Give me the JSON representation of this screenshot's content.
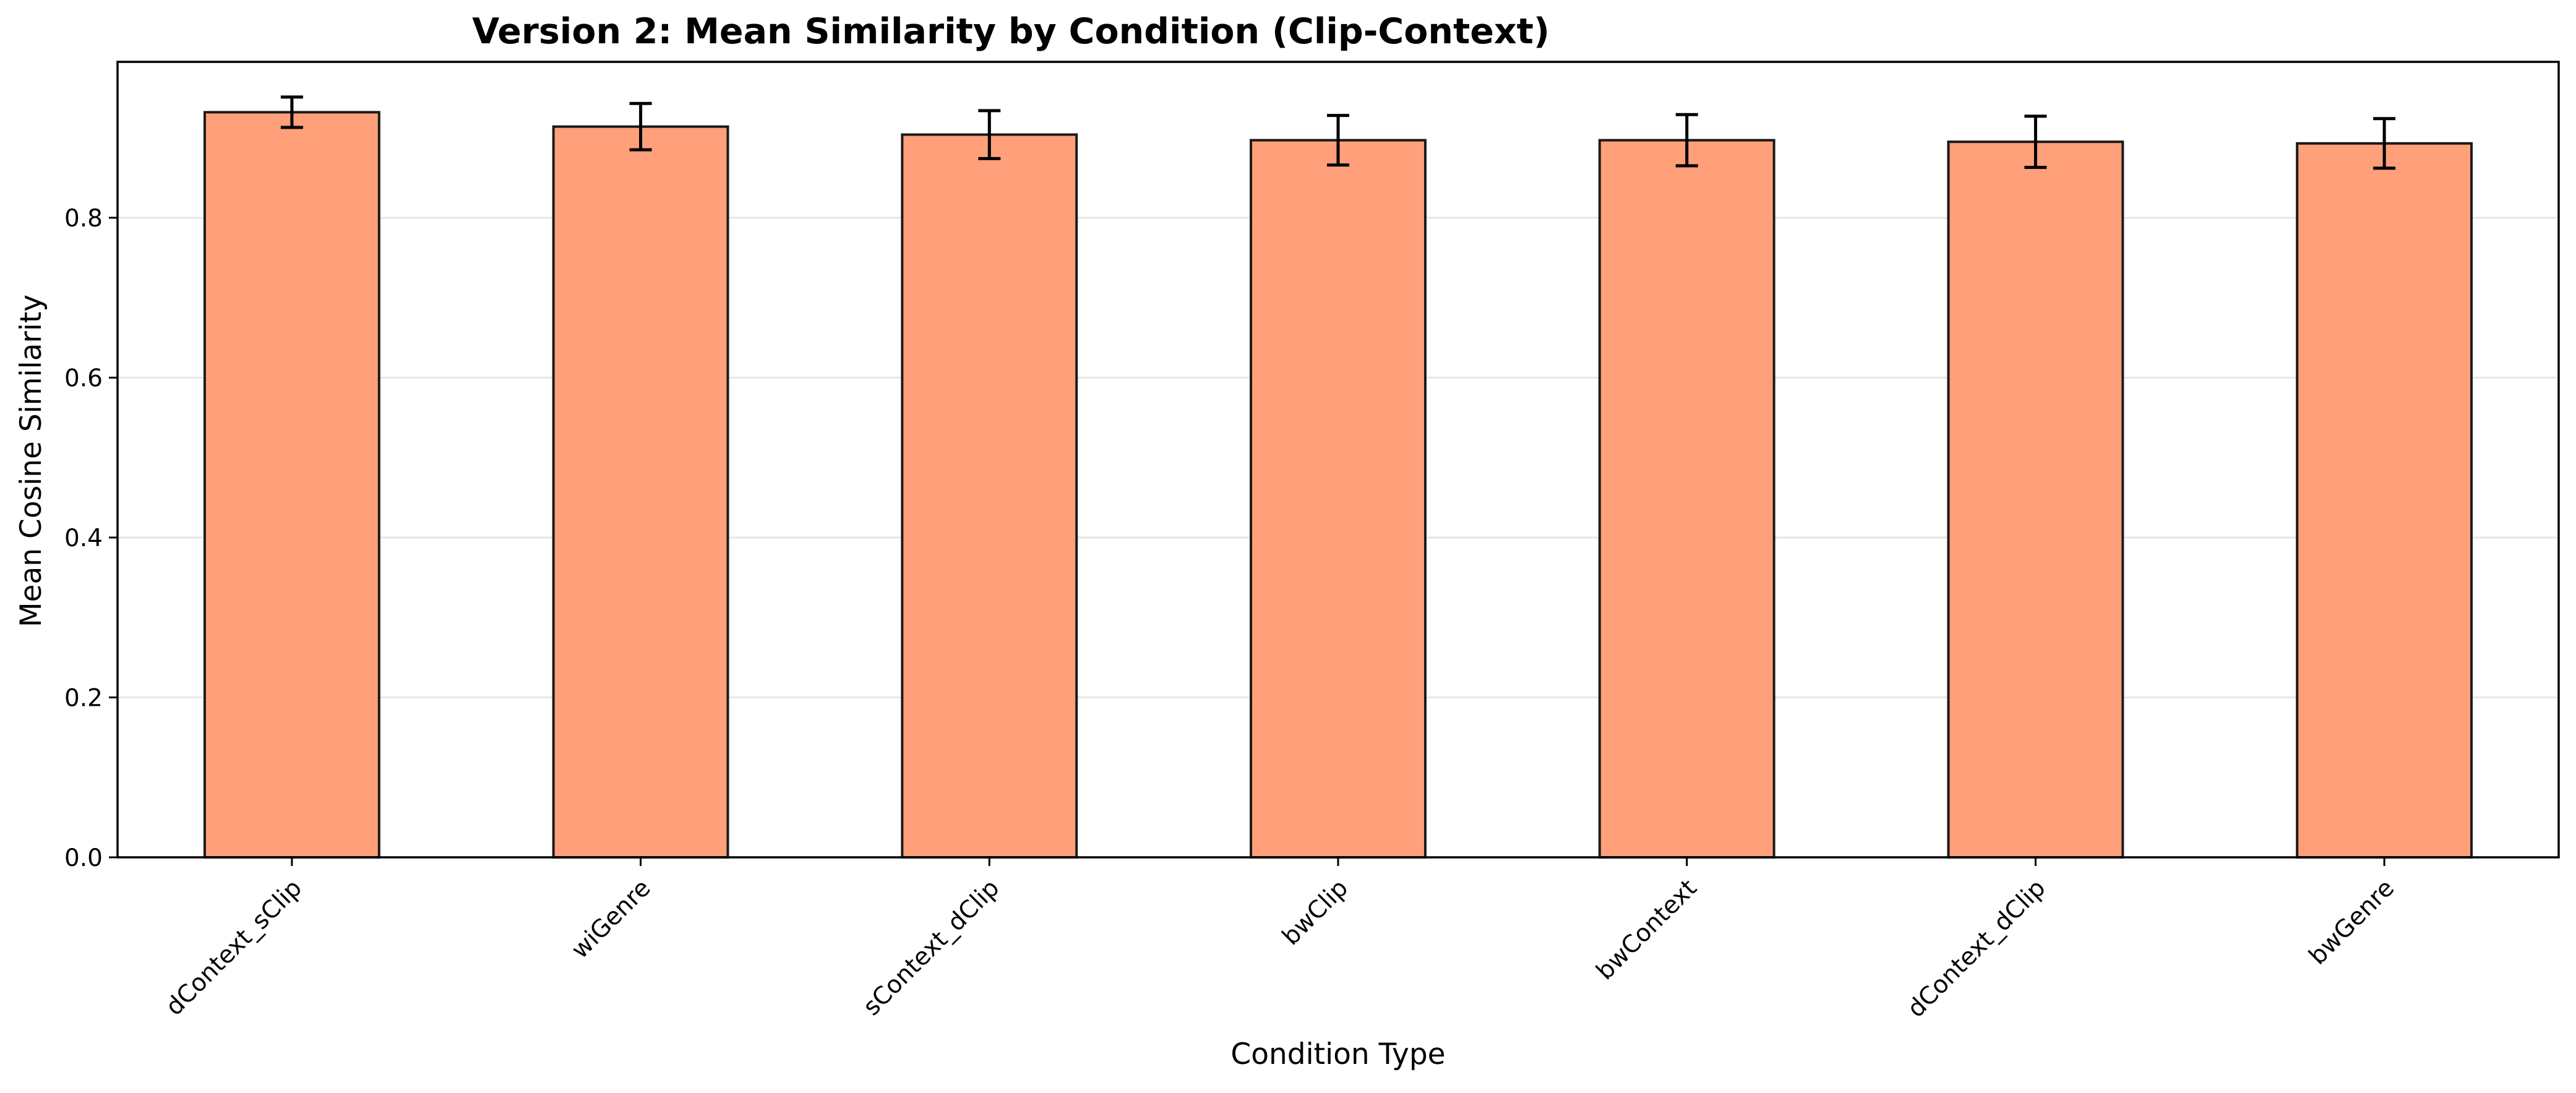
{
  "chart_data": {
    "type": "bar",
    "title": "Version 2: Mean Similarity by Condition (Clip-Context)",
    "xlabel": "Condition Type",
    "ylabel": "Mean Cosine Similarity",
    "categories": [
      "dContext_sClip",
      "wiGenre",
      "sContext_dClip",
      "bwClip",
      "bwContext",
      "dContext_dClip",
      "bwGenre"
    ],
    "values": [
      0.932,
      0.914,
      0.904,
      0.897,
      0.897,
      0.895,
      0.893
    ],
    "error": [
      0.019,
      0.029,
      0.03,
      0.031,
      0.032,
      0.032,
      0.031
    ],
    "ylim": [
      0,
      0.995
    ],
    "yticks": [
      "0.0",
      "0.2",
      "0.4",
      "0.6",
      "0.8"
    ],
    "grid": "y-axis, light",
    "legend": "none",
    "bar_color": "#ffa07a"
  }
}
